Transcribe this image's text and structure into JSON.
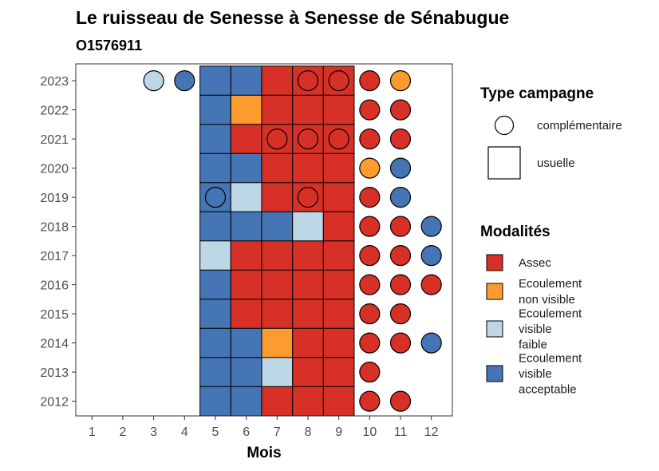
{
  "chart_data": {
    "type": "heatmap",
    "title": "Le ruisseau de Senesse à Senesse de Sénabugue",
    "subtitle": "O1576911",
    "xlabel": "Mois",
    "ylabel": "",
    "x_ticks": [
      "1",
      "2",
      "3",
      "4",
      "5",
      "6",
      "7",
      "8",
      "9",
      "10",
      "11",
      "12"
    ],
    "y_ticks": [
      "2012",
      "2013",
      "2014",
      "2015",
      "2016",
      "2017",
      "2018",
      "2019",
      "2020",
      "2021",
      "2022",
      "2023"
    ],
    "grid": false,
    "legend_position": "right",
    "shape_legend": {
      "title": "Type campagne",
      "items": [
        {
          "label": "complémentaire",
          "shape": "circle"
        },
        {
          "label": "usuelle",
          "shape": "square"
        }
      ]
    },
    "color_legend": {
      "title": "Modalités",
      "items": [
        {
          "key": "A",
          "lines": [
            "Assec"
          ],
          "color": "#d73027"
        },
        {
          "key": "N",
          "lines": [
            "Ecoulement",
            "non visible"
          ],
          "color": "#fd9b2e"
        },
        {
          "key": "F",
          "lines": [
            "Ecoulement",
            "visible",
            "faible"
          ],
          "color": "#bdd7e7"
        },
        {
          "key": "V",
          "lines": [
            "Ecoulement",
            "visible",
            "acceptable"
          ],
          "color": "#4575b4"
        }
      ]
    },
    "points": [
      {
        "year": 2023,
        "month": 3,
        "campagne": "complémentaire",
        "modalite": "F"
      },
      {
        "year": 2023,
        "month": 4,
        "campagne": "complémentaire",
        "modalite": "V"
      },
      {
        "year": 2023,
        "month": 5,
        "campagne": "usuelle",
        "modalite": "V"
      },
      {
        "year": 2023,
        "month": 6,
        "campagne": "usuelle",
        "modalite": "V"
      },
      {
        "year": 2023,
        "month": 7,
        "campagne": "usuelle",
        "modalite": "A"
      },
      {
        "year": 2023,
        "month": 8,
        "campagne": "usuelle",
        "modalite": "A"
      },
      {
        "year": 2023,
        "month": 8,
        "campagne": "complémentaire",
        "modalite": "A"
      },
      {
        "year": 2023,
        "month": 9,
        "campagne": "usuelle",
        "modalite": "A"
      },
      {
        "year": 2023,
        "month": 9,
        "campagne": "complémentaire",
        "modalite": "A"
      },
      {
        "year": 2023,
        "month": 10,
        "campagne": "complémentaire",
        "modalite": "A"
      },
      {
        "year": 2023,
        "month": 11,
        "campagne": "complémentaire",
        "modalite": "N"
      },
      {
        "year": 2022,
        "month": 5,
        "campagne": "usuelle",
        "modalite": "V"
      },
      {
        "year": 2022,
        "month": 6,
        "campagne": "usuelle",
        "modalite": "N"
      },
      {
        "year": 2022,
        "month": 7,
        "campagne": "usuelle",
        "modalite": "A"
      },
      {
        "year": 2022,
        "month": 8,
        "campagne": "usuelle",
        "modalite": "A"
      },
      {
        "year": 2022,
        "month": 9,
        "campagne": "usuelle",
        "modalite": "A"
      },
      {
        "year": 2022,
        "month": 10,
        "campagne": "complémentaire",
        "modalite": "A"
      },
      {
        "year": 2022,
        "month": 11,
        "campagne": "complémentaire",
        "modalite": "A"
      },
      {
        "year": 2021,
        "month": 5,
        "campagne": "usuelle",
        "modalite": "V"
      },
      {
        "year": 2021,
        "month": 6,
        "campagne": "usuelle",
        "modalite": "A"
      },
      {
        "year": 2021,
        "month": 7,
        "campagne": "usuelle",
        "modalite": "A"
      },
      {
        "year": 2021,
        "month": 7,
        "campagne": "complémentaire",
        "modalite": "A"
      },
      {
        "year": 2021,
        "month": 8,
        "campagne": "usuelle",
        "modalite": "A"
      },
      {
        "year": 2021,
        "month": 8,
        "campagne": "complémentaire",
        "modalite": "A"
      },
      {
        "year": 2021,
        "month": 9,
        "campagne": "usuelle",
        "modalite": "A"
      },
      {
        "year": 2021,
        "month": 9,
        "campagne": "complémentaire",
        "modalite": "A"
      },
      {
        "year": 2021,
        "month": 10,
        "campagne": "complémentaire",
        "modalite": "A"
      },
      {
        "year": 2021,
        "month": 11,
        "campagne": "complémentaire",
        "modalite": "A"
      },
      {
        "year": 2020,
        "month": 5,
        "campagne": "usuelle",
        "modalite": "V"
      },
      {
        "year": 2020,
        "month": 6,
        "campagne": "usuelle",
        "modalite": "V"
      },
      {
        "year": 2020,
        "month": 7,
        "campagne": "usuelle",
        "modalite": "A"
      },
      {
        "year": 2020,
        "month": 8,
        "campagne": "usuelle",
        "modalite": "A"
      },
      {
        "year": 2020,
        "month": 9,
        "campagne": "usuelle",
        "modalite": "A"
      },
      {
        "year": 2020,
        "month": 10,
        "campagne": "complémentaire",
        "modalite": "N"
      },
      {
        "year": 2020,
        "month": 11,
        "campagne": "complémentaire",
        "modalite": "V"
      },
      {
        "year": 2019,
        "month": 5,
        "campagne": "usuelle",
        "modalite": "V"
      },
      {
        "year": 2019,
        "month": 5,
        "campagne": "complémentaire",
        "modalite": "V"
      },
      {
        "year": 2019,
        "month": 6,
        "campagne": "usuelle",
        "modalite": "F"
      },
      {
        "year": 2019,
        "month": 7,
        "campagne": "usuelle",
        "modalite": "A"
      },
      {
        "year": 2019,
        "month": 8,
        "campagne": "usuelle",
        "modalite": "A"
      },
      {
        "year": 2019,
        "month": 8,
        "campagne": "complémentaire",
        "modalite": "A"
      },
      {
        "year": 2019,
        "month": 9,
        "campagne": "usuelle",
        "modalite": "A"
      },
      {
        "year": 2019,
        "month": 10,
        "campagne": "complémentaire",
        "modalite": "A"
      },
      {
        "year": 2019,
        "month": 11,
        "campagne": "complémentaire",
        "modalite": "V"
      },
      {
        "year": 2018,
        "month": 5,
        "campagne": "usuelle",
        "modalite": "V"
      },
      {
        "year": 2018,
        "month": 6,
        "campagne": "usuelle",
        "modalite": "V"
      },
      {
        "year": 2018,
        "month": 7,
        "campagne": "usuelle",
        "modalite": "V"
      },
      {
        "year": 2018,
        "month": 8,
        "campagne": "usuelle",
        "modalite": "F"
      },
      {
        "year": 2018,
        "month": 9,
        "campagne": "usuelle",
        "modalite": "A"
      },
      {
        "year": 2018,
        "month": 10,
        "campagne": "complémentaire",
        "modalite": "A"
      },
      {
        "year": 2018,
        "month": 11,
        "campagne": "complémentaire",
        "modalite": "A"
      },
      {
        "year": 2018,
        "month": 12,
        "campagne": "complémentaire",
        "modalite": "V"
      },
      {
        "year": 2017,
        "month": 5,
        "campagne": "usuelle",
        "modalite": "F"
      },
      {
        "year": 2017,
        "month": 6,
        "campagne": "usuelle",
        "modalite": "A"
      },
      {
        "year": 2017,
        "month": 7,
        "campagne": "usuelle",
        "modalite": "A"
      },
      {
        "year": 2017,
        "month": 8,
        "campagne": "usuelle",
        "modalite": "A"
      },
      {
        "year": 2017,
        "month": 9,
        "campagne": "usuelle",
        "modalite": "A"
      },
      {
        "year": 2017,
        "month": 10,
        "campagne": "complémentaire",
        "modalite": "A"
      },
      {
        "year": 2017,
        "month": 11,
        "campagne": "complémentaire",
        "modalite": "A"
      },
      {
        "year": 2017,
        "month": 12,
        "campagne": "complémentaire",
        "modalite": "V"
      },
      {
        "year": 2016,
        "month": 5,
        "campagne": "usuelle",
        "modalite": "V"
      },
      {
        "year": 2016,
        "month": 6,
        "campagne": "usuelle",
        "modalite": "A"
      },
      {
        "year": 2016,
        "month": 7,
        "campagne": "usuelle",
        "modalite": "A"
      },
      {
        "year": 2016,
        "month": 8,
        "campagne": "usuelle",
        "modalite": "A"
      },
      {
        "year": 2016,
        "month": 9,
        "campagne": "usuelle",
        "modalite": "A"
      },
      {
        "year": 2016,
        "month": 10,
        "campagne": "complémentaire",
        "modalite": "A"
      },
      {
        "year": 2016,
        "month": 11,
        "campagne": "complémentaire",
        "modalite": "A"
      },
      {
        "year": 2016,
        "month": 12,
        "campagne": "complémentaire",
        "modalite": "A"
      },
      {
        "year": 2015,
        "month": 5,
        "campagne": "usuelle",
        "modalite": "V"
      },
      {
        "year": 2015,
        "month": 6,
        "campagne": "usuelle",
        "modalite": "A"
      },
      {
        "year": 2015,
        "month": 7,
        "campagne": "usuelle",
        "modalite": "A"
      },
      {
        "year": 2015,
        "month": 8,
        "campagne": "usuelle",
        "modalite": "A"
      },
      {
        "year": 2015,
        "month": 9,
        "campagne": "usuelle",
        "modalite": "A"
      },
      {
        "year": 2015,
        "month": 10,
        "campagne": "complémentaire",
        "modalite": "A"
      },
      {
        "year": 2015,
        "month": 11,
        "campagne": "complémentaire",
        "modalite": "A"
      },
      {
        "year": 2014,
        "month": 5,
        "campagne": "usuelle",
        "modalite": "V"
      },
      {
        "year": 2014,
        "month": 6,
        "campagne": "usuelle",
        "modalite": "V"
      },
      {
        "year": 2014,
        "month": 7,
        "campagne": "usuelle",
        "modalite": "N"
      },
      {
        "year": 2014,
        "month": 8,
        "campagne": "usuelle",
        "modalite": "A"
      },
      {
        "year": 2014,
        "month": 9,
        "campagne": "usuelle",
        "modalite": "A"
      },
      {
        "year": 2014,
        "month": 10,
        "campagne": "complémentaire",
        "modalite": "A"
      },
      {
        "year": 2014,
        "month": 11,
        "campagne": "complémentaire",
        "modalite": "A"
      },
      {
        "year": 2014,
        "month": 12,
        "campagne": "complémentaire",
        "modalite": "V"
      },
      {
        "year": 2013,
        "month": 5,
        "campagne": "usuelle",
        "modalite": "V"
      },
      {
        "year": 2013,
        "month": 6,
        "campagne": "usuelle",
        "modalite": "V"
      },
      {
        "year": 2013,
        "month": 7,
        "campagne": "usuelle",
        "modalite": "F"
      },
      {
        "year": 2013,
        "month": 8,
        "campagne": "usuelle",
        "modalite": "A"
      },
      {
        "year": 2013,
        "month": 9,
        "campagne": "usuelle",
        "modalite": "A"
      },
      {
        "year": 2013,
        "month": 10,
        "campagne": "complémentaire",
        "modalite": "A"
      },
      {
        "year": 2012,
        "month": 5,
        "campagne": "usuelle",
        "modalite": "V"
      },
      {
        "year": 2012,
        "month": 6,
        "campagne": "usuelle",
        "modalite": "V"
      },
      {
        "year": 2012,
        "month": 7,
        "campagne": "usuelle",
        "modalite": "A"
      },
      {
        "year": 2012,
        "month": 8,
        "campagne": "usuelle",
        "modalite": "A"
      },
      {
        "year": 2012,
        "month": 9,
        "campagne": "usuelle",
        "modalite": "A"
      },
      {
        "year": 2012,
        "month": 10,
        "campagne": "complémentaire",
        "modalite": "A"
      },
      {
        "year": 2012,
        "month": 11,
        "campagne": "complémentaire",
        "modalite": "A"
      }
    ]
  }
}
